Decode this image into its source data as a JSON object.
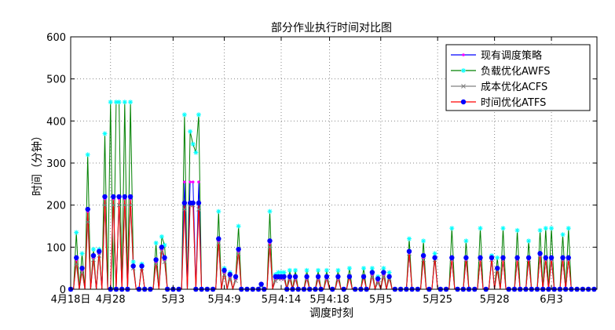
{
  "chart_data": {
    "type": "line",
    "title": "部分作业执行时间对比图",
    "xlabel": "调度时刻",
    "ylabel": "时间（分钟）",
    "ylim": [
      0,
      600
    ],
    "yticks": [
      0,
      100,
      200,
      300,
      400,
      500,
      600
    ],
    "grid": true,
    "legend_position": "top-right",
    "x_count": 186,
    "x_ticks": [
      {
        "index": 0,
        "label": "4月18日"
      },
      {
        "index": 14,
        "label": "4月28"
      },
      {
        "index": 36,
        "label": "5月3"
      },
      {
        "index": 54,
        "label": "5月4:9"
      },
      {
        "index": 74,
        "label": "5月4:14"
      },
      {
        "index": 91,
        "label": "5月4:18"
      },
      {
        "index": 109,
        "label": "5月5"
      },
      {
        "index": 129,
        "label": "5月25"
      },
      {
        "index": 149,
        "label": "5月28"
      },
      {
        "index": 169,
        "label": "6月3"
      }
    ],
    "series": [
      {
        "name": "现有调度策略",
        "color": "#0000ff",
        "marker_color": "#ff00ff",
        "marker": "point",
        "peaks": [
          [
            2,
            70
          ],
          [
            4,
            45
          ],
          [
            6,
            185
          ],
          [
            8,
            75
          ],
          [
            10,
            85
          ],
          [
            12,
            215
          ],
          [
            15,
            215
          ],
          [
            17,
            215
          ],
          [
            19,
            215
          ],
          [
            21,
            215
          ],
          [
            22,
            55
          ],
          [
            25,
            55
          ],
          [
            30,
            65
          ],
          [
            32,
            95
          ],
          [
            33,
            70
          ],
          [
            40,
            255
          ],
          [
            42,
            255
          ],
          [
            43,
            255
          ],
          [
            45,
            255
          ],
          [
            52,
            115
          ],
          [
            54,
            40
          ],
          [
            56,
            30
          ],
          [
            58,
            25
          ],
          [
            59,
            90
          ],
          [
            67,
            10
          ],
          [
            70,
            110
          ],
          [
            72,
            25
          ],
          [
            73,
            30
          ],
          [
            74,
            25
          ],
          [
            75,
            25
          ],
          [
            77,
            25
          ],
          [
            79,
            25
          ],
          [
            83,
            25
          ],
          [
            87,
            25
          ],
          [
            90,
            25
          ],
          [
            94,
            25
          ],
          [
            98,
            30
          ],
          [
            103,
            30
          ],
          [
            106,
            35
          ],
          [
            108,
            20
          ],
          [
            110,
            35
          ],
          [
            112,
            30
          ],
          [
            119,
            85
          ],
          [
            124,
            75
          ],
          [
            128,
            75
          ],
          [
            134,
            70
          ],
          [
            139,
            70
          ],
          [
            144,
            70
          ],
          [
            148,
            70
          ],
          [
            150,
            50
          ],
          [
            152,
            70
          ],
          [
            157,
            70
          ],
          [
            161,
            70
          ],
          [
            165,
            80
          ],
          [
            167,
            70
          ],
          [
            169,
            70
          ],
          [
            173,
            70
          ],
          [
            175,
            70
          ]
        ]
      },
      {
        "name": "负载优化AWFS",
        "color": "#008000",
        "marker_color": "#00ffff",
        "marker": "star",
        "peaks": [
          [
            2,
            135
          ],
          [
            4,
            85
          ],
          [
            6,
            320
          ],
          [
            8,
            95
          ],
          [
            10,
            95
          ],
          [
            12,
            370
          ],
          [
            14,
            445
          ],
          [
            16,
            445
          ],
          [
            17,
            445
          ],
          [
            19,
            445
          ],
          [
            21,
            445
          ],
          [
            22,
            65
          ],
          [
            25,
            60
          ],
          [
            30,
            110
          ],
          [
            32,
            125
          ],
          [
            33,
            105
          ],
          [
            40,
            415
          ],
          [
            42,
            375
          ],
          [
            43,
            345
          ],
          [
            44,
            325
          ],
          [
            45,
            415
          ],
          [
            52,
            185
          ],
          [
            54,
            50
          ],
          [
            56,
            40
          ],
          [
            58,
            30
          ],
          [
            59,
            150
          ],
          [
            67,
            10
          ],
          [
            70,
            185
          ],
          [
            72,
            35
          ],
          [
            73,
            40
          ],
          [
            74,
            40
          ],
          [
            75,
            40
          ],
          [
            77,
            45
          ],
          [
            79,
            45
          ],
          [
            83,
            45
          ],
          [
            87,
            45
          ],
          [
            90,
            45
          ],
          [
            94,
            45
          ],
          [
            98,
            50
          ],
          [
            103,
            50
          ],
          [
            106,
            50
          ],
          [
            108,
            30
          ],
          [
            110,
            50
          ],
          [
            112,
            40
          ],
          [
            119,
            120
          ],
          [
            124,
            115
          ],
          [
            128,
            85
          ],
          [
            134,
            145
          ],
          [
            139,
            115
          ],
          [
            144,
            145
          ],
          [
            148,
            80
          ],
          [
            150,
            75
          ],
          [
            152,
            145
          ],
          [
            157,
            140
          ],
          [
            161,
            115
          ],
          [
            165,
            140
          ],
          [
            167,
            145
          ],
          [
            169,
            145
          ],
          [
            173,
            130
          ],
          [
            175,
            145
          ]
        ]
      },
      {
        "name": "成本优化ACFS",
        "color": "#808080",
        "marker_color": "#808080",
        "marker": "x",
        "peaks": [
          [
            2,
            60
          ],
          [
            4,
            40
          ],
          [
            6,
            160
          ],
          [
            8,
            70
          ],
          [
            10,
            80
          ],
          [
            12,
            200
          ],
          [
            15,
            200
          ],
          [
            17,
            200
          ],
          [
            19,
            200
          ],
          [
            21,
            200
          ],
          [
            22,
            50
          ],
          [
            25,
            50
          ],
          [
            30,
            60
          ],
          [
            32,
            90
          ],
          [
            33,
            65
          ],
          [
            40,
            190
          ],
          [
            42,
            200
          ],
          [
            43,
            200
          ],
          [
            45,
            190
          ],
          [
            52,
            110
          ],
          [
            54,
            35
          ],
          [
            56,
            25
          ],
          [
            58,
            20
          ],
          [
            59,
            85
          ],
          [
            67,
            10
          ],
          [
            70,
            100
          ],
          [
            72,
            20
          ],
          [
            73,
            25
          ],
          [
            74,
            25
          ],
          [
            75,
            25
          ],
          [
            77,
            25
          ],
          [
            79,
            25
          ],
          [
            83,
            25
          ],
          [
            87,
            25
          ],
          [
            90,
            25
          ],
          [
            94,
            25
          ],
          [
            98,
            30
          ],
          [
            103,
            30
          ],
          [
            106,
            30
          ],
          [
            108,
            15
          ],
          [
            110,
            30
          ],
          [
            112,
            25
          ],
          [
            119,
            85
          ],
          [
            124,
            70
          ],
          [
            128,
            70
          ],
          [
            134,
            70
          ],
          [
            139,
            70
          ],
          [
            144,
            70
          ],
          [
            148,
            70
          ],
          [
            150,
            45
          ],
          [
            152,
            70
          ],
          [
            157,
            70
          ],
          [
            161,
            70
          ],
          [
            165,
            80
          ],
          [
            167,
            70
          ],
          [
            169,
            70
          ],
          [
            173,
            70
          ],
          [
            175,
            70
          ]
        ]
      },
      {
        "name": "时间优化ATFS",
        "color": "#ff0000",
        "marker_color": "#0000ff",
        "marker": "dot",
        "peaks": [
          [
            2,
            75
          ],
          [
            4,
            50
          ],
          [
            6,
            190
          ],
          [
            8,
            80
          ],
          [
            10,
            90
          ],
          [
            12,
            220
          ],
          [
            15,
            220
          ],
          [
            17,
            220
          ],
          [
            19,
            220
          ],
          [
            21,
            220
          ],
          [
            22,
            55
          ],
          [
            25,
            55
          ],
          [
            30,
            70
          ],
          [
            32,
            100
          ],
          [
            33,
            75
          ],
          [
            40,
            205
          ],
          [
            42,
            205
          ],
          [
            43,
            205
          ],
          [
            45,
            205
          ],
          [
            52,
            120
          ],
          [
            54,
            45
          ],
          [
            56,
            35
          ],
          [
            58,
            30
          ],
          [
            59,
            95
          ],
          [
            67,
            12
          ],
          [
            70,
            115
          ],
          [
            72,
            30
          ],
          [
            73,
            30
          ],
          [
            74,
            30
          ],
          [
            75,
            30
          ],
          [
            77,
            30
          ],
          [
            79,
            30
          ],
          [
            83,
            30
          ],
          [
            87,
            30
          ],
          [
            90,
            30
          ],
          [
            94,
            30
          ],
          [
            98,
            30
          ],
          [
            103,
            30
          ],
          [
            106,
            40
          ],
          [
            108,
            25
          ],
          [
            110,
            40
          ],
          [
            112,
            30
          ],
          [
            119,
            90
          ],
          [
            124,
            80
          ],
          [
            128,
            75
          ],
          [
            134,
            75
          ],
          [
            139,
            75
          ],
          [
            144,
            75
          ],
          [
            148,
            75
          ],
          [
            150,
            50
          ],
          [
            152,
            75
          ],
          [
            157,
            75
          ],
          [
            161,
            75
          ],
          [
            165,
            85
          ],
          [
            167,
            75
          ],
          [
            169,
            75
          ],
          [
            173,
            75
          ],
          [
            175,
            75
          ]
        ]
      }
    ]
  }
}
